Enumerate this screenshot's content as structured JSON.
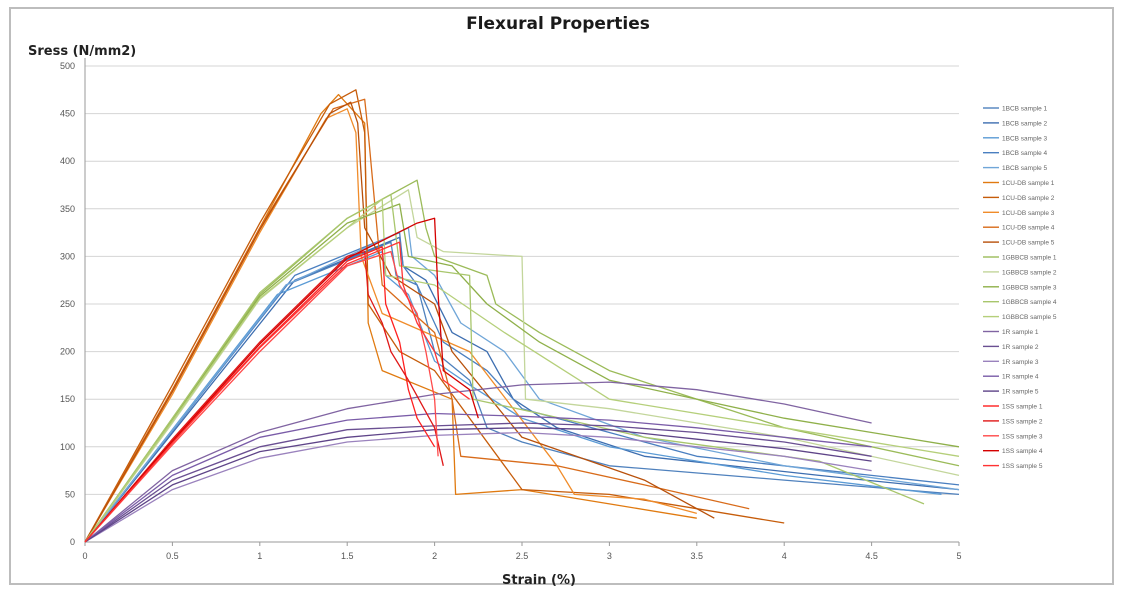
{
  "chart_data": {
    "type": "line",
    "title": "Flexural Properties",
    "xlabel": "Strain (%)",
    "ylabel": "Sress (N/mm2)",
    "xlim": [
      0,
      5
    ],
    "ylim": [
      0,
      500
    ],
    "x_ticks": [
      "0",
      "0.5",
      "1",
      "1.5",
      "2",
      "2.5",
      "3",
      "3.5",
      "4",
      "4.5",
      "5"
    ],
    "x_tick_values": [
      0,
      0.5,
      1,
      1.5,
      2,
      2.5,
      3,
      3.5,
      4,
      4.5,
      5
    ],
    "y_ticks": [
      "0",
      "50",
      "100",
      "150",
      "200",
      "250",
      "300",
      "350",
      "400",
      "450",
      "500"
    ],
    "y_tick_values": [
      0,
      50,
      100,
      150,
      200,
      250,
      300,
      350,
      400,
      450,
      500
    ],
    "grid": "horizontal",
    "legend_position": "right",
    "series": [
      {
        "name": "1BCB sample 1",
        "color": "#4f81bd",
        "points": [
          [
            0,
            0
          ],
          [
            1.15,
            270
          ],
          [
            1.75,
            315
          ],
          [
            1.78,
            280
          ],
          [
            1.9,
            270
          ],
          [
            2.0,
            200
          ],
          [
            2.2,
            170
          ],
          [
            2.3,
            120
          ],
          [
            2.5,
            105
          ],
          [
            3.0,
            80
          ],
          [
            4.0,
            65
          ],
          [
            5.0,
            50
          ]
        ]
      },
      {
        "name": "1BCB sample 2",
        "color": "#3d6eb0",
        "points": [
          [
            0,
            0
          ],
          [
            1.2,
            275
          ],
          [
            1.8,
            320
          ],
          [
            1.82,
            290
          ],
          [
            1.95,
            275
          ],
          [
            2.1,
            220
          ],
          [
            2.3,
            200
          ],
          [
            2.45,
            150
          ],
          [
            2.7,
            120
          ],
          [
            3.2,
            90
          ],
          [
            4.2,
            70
          ],
          [
            5.0,
            55
          ]
        ]
      },
      {
        "name": "1BCB sample 3",
        "color": "#5b9bd5",
        "points": [
          [
            0,
            0
          ],
          [
            1.1,
            260
          ],
          [
            1.7,
            305
          ],
          [
            1.72,
            280
          ],
          [
            1.85,
            260
          ],
          [
            2.0,
            190
          ],
          [
            2.2,
            165
          ],
          [
            2.5,
            130
          ],
          [
            3.0,
            100
          ],
          [
            4.0,
            70
          ],
          [
            4.9,
            50
          ]
        ]
      },
      {
        "name": "1BCB sample 4",
        "color": "#4a7fc0",
        "points": [
          [
            0,
            0
          ],
          [
            1.2,
            280
          ],
          [
            1.8,
            325
          ],
          [
            1.82,
            290
          ],
          [
            1.9,
            270
          ],
          [
            2.05,
            210
          ],
          [
            2.3,
            180
          ],
          [
            2.5,
            140
          ],
          [
            3.0,
            115
          ],
          [
            3.5,
            90
          ],
          [
            4.5,
            70
          ],
          [
            5.0,
            60
          ]
        ]
      },
      {
        "name": "1BCB sample 5",
        "color": "#70a6d8",
        "points": [
          [
            0,
            0
          ],
          [
            1.15,
            270
          ],
          [
            1.85,
            330
          ],
          [
            1.87,
            300
          ],
          [
            2.0,
            280
          ],
          [
            2.15,
            230
          ],
          [
            2.4,
            200
          ],
          [
            2.6,
            150
          ],
          [
            3.2,
            110
          ],
          [
            4.0,
            80
          ],
          [
            5.0,
            55
          ]
        ]
      },
      {
        "name": "1CU-DB sample 1",
        "color": "#e07a10",
        "points": [
          [
            0,
            0
          ],
          [
            0.5,
            160
          ],
          [
            1.0,
            330
          ],
          [
            1.35,
            450
          ],
          [
            1.45,
            470
          ],
          [
            1.6,
            440
          ],
          [
            1.62,
            230
          ],
          [
            1.7,
            180
          ],
          [
            2.1,
            150
          ],
          [
            2.12,
            50
          ],
          [
            2.5,
            55
          ],
          [
            3.0,
            40
          ],
          [
            3.5,
            25
          ]
        ]
      },
      {
        "name": "1CU-DB sample 2",
        "color": "#c65c0a",
        "points": [
          [
            0,
            0
          ],
          [
            0.5,
            165
          ],
          [
            1.0,
            335
          ],
          [
            1.4,
            460
          ],
          [
            1.55,
            475
          ],
          [
            1.6,
            430
          ],
          [
            1.62,
            250
          ],
          [
            1.8,
            200
          ],
          [
            2.0,
            180
          ],
          [
            2.5,
            55
          ],
          [
            3.0,
            50
          ],
          [
            3.5,
            35
          ],
          [
            4.0,
            20
          ]
        ]
      },
      {
        "name": "1CU-DB sample 3",
        "color": "#f08c2a",
        "points": [
          [
            0,
            0
          ],
          [
            0.5,
            155
          ],
          [
            1.0,
            325
          ],
          [
            1.38,
            445
          ],
          [
            1.5,
            455
          ],
          [
            1.55,
            430
          ],
          [
            1.58,
            300
          ],
          [
            1.7,
            240
          ],
          [
            2.2,
            200
          ],
          [
            2.7,
            80
          ],
          [
            2.8,
            50
          ],
          [
            3.2,
            45
          ],
          [
            3.5,
            30
          ]
        ]
      },
      {
        "name": "1CU-DB sample 4",
        "color": "#d86b1a",
        "points": [
          [
            0,
            0
          ],
          [
            0.5,
            160
          ],
          [
            1.0,
            330
          ],
          [
            1.42,
            455
          ],
          [
            1.6,
            465
          ],
          [
            1.62,
            430
          ],
          [
            1.7,
            270
          ],
          [
            2.0,
            220
          ],
          [
            2.1,
            150
          ],
          [
            2.15,
            90
          ],
          [
            2.7,
            80
          ],
          [
            3.2,
            60
          ],
          [
            3.8,
            35
          ]
        ]
      },
      {
        "name": "1CU-DB sample 5",
        "color": "#b8500a",
        "points": [
          [
            0,
            0
          ],
          [
            0.5,
            158
          ],
          [
            1.0,
            328
          ],
          [
            1.4,
            450
          ],
          [
            1.52,
            462
          ],
          [
            1.56,
            440
          ],
          [
            1.6,
            330
          ],
          [
            1.75,
            280
          ],
          [
            2.0,
            250
          ],
          [
            2.1,
            200
          ],
          [
            2.5,
            110
          ],
          [
            3.2,
            65
          ],
          [
            3.6,
            25
          ]
        ]
      },
      {
        "name": "1GBBCB sample 1",
        "color": "#9bbb59",
        "points": [
          [
            0,
            0
          ],
          [
            0.5,
            130
          ],
          [
            1.0,
            260
          ],
          [
            1.5,
            340
          ],
          [
            1.9,
            380
          ],
          [
            1.95,
            330
          ],
          [
            2.0,
            300
          ],
          [
            2.3,
            280
          ],
          [
            2.35,
            250
          ],
          [
            2.6,
            220
          ],
          [
            3.0,
            180
          ],
          [
            4.0,
            120
          ],
          [
            5.0,
            80
          ]
        ]
      },
      {
        "name": "1GBBCB sample 2",
        "color": "#c3d69b",
        "points": [
          [
            0,
            0
          ],
          [
            0.5,
            125
          ],
          [
            1.0,
            255
          ],
          [
            1.5,
            330
          ],
          [
            1.85,
            370
          ],
          [
            1.9,
            320
          ],
          [
            2.05,
            305
          ],
          [
            2.5,
            300
          ],
          [
            2.52,
            150
          ],
          [
            3.0,
            140
          ],
          [
            4.0,
            110
          ],
          [
            5.0,
            70
          ]
        ]
      },
      {
        "name": "1GBBCB sample 3",
        "color": "#8fb04a",
        "points": [
          [
            0,
            0
          ],
          [
            0.5,
            128
          ],
          [
            1.0,
            258
          ],
          [
            1.5,
            335
          ],
          [
            1.8,
            355
          ],
          [
            1.85,
            300
          ],
          [
            2.1,
            290
          ],
          [
            2.3,
            250
          ],
          [
            2.6,
            210
          ],
          [
            3.0,
            170
          ],
          [
            4.0,
            130
          ],
          [
            5.0,
            100
          ]
        ]
      },
      {
        "name": "1GBBCB sample 4",
        "color": "#a8c66c",
        "points": [
          [
            0,
            0
          ],
          [
            0.5,
            130
          ],
          [
            1.0,
            262
          ],
          [
            1.5,
            340
          ],
          [
            1.75,
            365
          ],
          [
            1.8,
            290
          ],
          [
            2.2,
            280
          ],
          [
            2.22,
            150
          ],
          [
            2.6,
            135
          ],
          [
            3.2,
            110
          ],
          [
            4.2,
            85
          ],
          [
            4.8,
            40
          ]
        ]
      },
      {
        "name": "1GBBCB sample 5",
        "color": "#b5cf7a",
        "points": [
          [
            0,
            0
          ],
          [
            0.5,
            127
          ],
          [
            1.0,
            256
          ],
          [
            1.5,
            330
          ],
          [
            1.7,
            360
          ],
          [
            1.72,
            280
          ],
          [
            2.0,
            270
          ],
          [
            2.4,
            220
          ],
          [
            3.0,
            150
          ],
          [
            4.0,
            120
          ],
          [
            5.0,
            90
          ]
        ]
      },
      {
        "name": "1R sample 1",
        "color": "#8064a2",
        "points": [
          [
            0,
            0
          ],
          [
            0.5,
            75
          ],
          [
            1.0,
            115
          ],
          [
            1.5,
            140
          ],
          [
            2.0,
            155
          ],
          [
            2.5,
            165
          ],
          [
            3.0,
            168
          ],
          [
            3.5,
            160
          ],
          [
            4.0,
            145
          ],
          [
            4.5,
            125
          ]
        ]
      },
      {
        "name": "1R sample 2",
        "color": "#6a4f92",
        "points": [
          [
            0,
            0
          ],
          [
            0.5,
            65
          ],
          [
            1.0,
            100
          ],
          [
            1.5,
            118
          ],
          [
            2.0,
            122
          ],
          [
            2.5,
            125
          ],
          [
            3.0,
            122
          ],
          [
            3.5,
            115
          ],
          [
            4.0,
            105
          ],
          [
            4.5,
            90
          ]
        ]
      },
      {
        "name": "1R sample 3",
        "color": "#9a82bd",
        "points": [
          [
            0,
            0
          ],
          [
            0.5,
            55
          ],
          [
            1.0,
            88
          ],
          [
            1.5,
            105
          ],
          [
            2.0,
            112
          ],
          [
            2.5,
            115
          ],
          [
            3.0,
            110
          ],
          [
            3.5,
            100
          ],
          [
            4.0,
            90
          ],
          [
            4.5,
            75
          ]
        ]
      },
      {
        "name": "1R sample 4",
        "color": "#7a5ca8",
        "points": [
          [
            0,
            0
          ],
          [
            0.5,
            70
          ],
          [
            1.0,
            110
          ],
          [
            1.5,
            128
          ],
          [
            2.0,
            135
          ],
          [
            2.5,
            132
          ],
          [
            3.0,
            128
          ],
          [
            3.5,
            120
          ],
          [
            4.0,
            110
          ],
          [
            4.5,
            100
          ]
        ]
      },
      {
        "name": "1R sample 5",
        "color": "#5e4488",
        "points": [
          [
            0,
            0
          ],
          [
            0.5,
            60
          ],
          [
            1.0,
            95
          ],
          [
            1.5,
            110
          ],
          [
            2.0,
            118
          ],
          [
            2.5,
            120
          ],
          [
            3.0,
            118
          ],
          [
            3.5,
            108
          ],
          [
            4.0,
            98
          ],
          [
            4.5,
            85
          ]
        ]
      },
      {
        "name": "1SS sample 1",
        "color": "#ff2020",
        "points": [
          [
            0,
            0
          ],
          [
            0.5,
            105
          ],
          [
            1.0,
            205
          ],
          [
            1.5,
            295
          ],
          [
            1.7,
            310
          ],
          [
            1.72,
            250
          ],
          [
            1.8,
            210
          ],
          [
            1.85,
            160
          ],
          [
            1.9,
            130
          ],
          [
            2.0,
            100
          ]
        ]
      },
      {
        "name": "1SS sample 2",
        "color": "#e01818",
        "points": [
          [
            0,
            0
          ],
          [
            0.5,
            108
          ],
          [
            1.0,
            210
          ],
          [
            1.5,
            300
          ],
          [
            1.6,
            305
          ],
          [
            1.62,
            260
          ],
          [
            1.7,
            230
          ],
          [
            1.75,
            200
          ],
          [
            1.85,
            170
          ],
          [
            2.0,
            120
          ],
          [
            2.05,
            80
          ]
        ]
      },
      {
        "name": "1SS sample 3",
        "color": "#ff4a4a",
        "points": [
          [
            0,
            0
          ],
          [
            0.5,
            102
          ],
          [
            1.0,
            200
          ],
          [
            1.5,
            290
          ],
          [
            1.75,
            305
          ],
          [
            1.8,
            270
          ],
          [
            1.9,
            240
          ],
          [
            1.95,
            200
          ],
          [
            2.0,
            150
          ],
          [
            2.02,
            90
          ]
        ]
      },
      {
        "name": "1SS sample 4",
        "color": "#d40000",
        "points": [
          [
            0,
            0
          ],
          [
            0.5,
            106
          ],
          [
            1.0,
            208
          ],
          [
            1.5,
            298
          ],
          [
            1.9,
            335
          ],
          [
            2.0,
            340
          ],
          [
            2.02,
            260
          ],
          [
            2.05,
            180
          ],
          [
            2.2,
            160
          ],
          [
            2.25,
            130
          ]
        ]
      },
      {
        "name": "1SS sample 5",
        "color": "#ff3333",
        "points": [
          [
            0,
            0
          ],
          [
            0.5,
            104
          ],
          [
            1.0,
            204
          ],
          [
            1.5,
            292
          ],
          [
            1.8,
            315
          ],
          [
            1.82,
            270
          ],
          [
            1.9,
            230
          ],
          [
            2.0,
            200
          ],
          [
            2.05,
            170
          ],
          [
            2.2,
            150
          ]
        ]
      }
    ]
  }
}
